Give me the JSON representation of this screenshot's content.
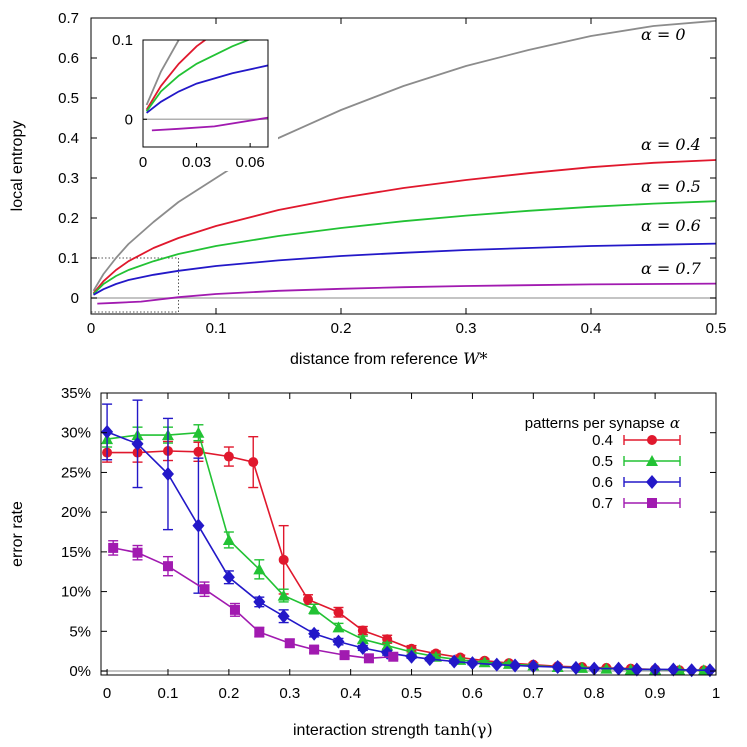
{
  "chart_data": [
    {
      "type": "line",
      "id": "top",
      "title": "",
      "xlabel": "distance from reference",
      "xlabel_math": "W*",
      "ylabel": "local entropy",
      "xlim": [
        0,
        0.5
      ],
      "ylim": [
        -0.04,
        0.7
      ],
      "xticks": [
        {
          "v": 0,
          "label": "0"
        },
        {
          "v": 0.1,
          "label": "0.1"
        },
        {
          "v": 0.2,
          "label": "0.2"
        },
        {
          "v": 0.3,
          "label": "0.3"
        },
        {
          "v": 0.4,
          "label": "0.4"
        },
        {
          "v": 0.5,
          "label": "0.5"
        }
      ],
      "yticks": [
        {
          "v": 0,
          "label": "0"
        },
        {
          "v": 0.1,
          "label": "0.1"
        },
        {
          "v": 0.2,
          "label": "0.2"
        },
        {
          "v": 0.3,
          "label": "0.3"
        },
        {
          "v": 0.4,
          "label": "0.4"
        },
        {
          "v": 0.5,
          "label": "0.5"
        },
        {
          "v": 0.6,
          "label": "0.6"
        },
        {
          "v": 0.7,
          "label": "0.7"
        }
      ],
      "series": [
        {
          "name": "α = 0",
          "label": "α = 0",
          "label_at": [
            0.44,
            0.645
          ],
          "color": "#8c8c8c",
          "x": [
            0.002,
            0.01,
            0.02,
            0.03,
            0.05,
            0.07,
            0.1,
            0.13,
            0.15,
            0.2,
            0.25,
            0.3,
            0.35,
            0.4,
            0.45,
            0.5
          ],
          "y": [
            0.018,
            0.06,
            0.1,
            0.135,
            0.19,
            0.24,
            0.3,
            0.36,
            0.4,
            0.47,
            0.53,
            0.58,
            0.62,
            0.655,
            0.68,
            0.693
          ]
        },
        {
          "name": "α = 0.4",
          "label": "α = 0.4",
          "label_at": [
            0.44,
            0.37
          ],
          "color": "#e0182d",
          "x": [
            0.002,
            0.01,
            0.02,
            0.03,
            0.05,
            0.07,
            0.1,
            0.15,
            0.2,
            0.25,
            0.3,
            0.35,
            0.4,
            0.45,
            0.5
          ],
          "y": [
            0.012,
            0.042,
            0.07,
            0.092,
            0.125,
            0.15,
            0.18,
            0.22,
            0.25,
            0.275,
            0.295,
            0.312,
            0.327,
            0.338,
            0.345
          ]
        },
        {
          "name": "α = 0.5",
          "label": "α = 0.5",
          "label_at": [
            0.44,
            0.265
          ],
          "color": "#22c234",
          "x": [
            0.002,
            0.01,
            0.02,
            0.03,
            0.05,
            0.07,
            0.1,
            0.15,
            0.2,
            0.25,
            0.3,
            0.35,
            0.4,
            0.45,
            0.5
          ],
          "y": [
            0.01,
            0.035,
            0.055,
            0.07,
            0.092,
            0.11,
            0.13,
            0.155,
            0.175,
            0.192,
            0.206,
            0.218,
            0.228,
            0.236,
            0.242
          ]
        },
        {
          "name": "α = 0.6",
          "label": "α = 0.6",
          "label_at": [
            0.44,
            0.168
          ],
          "color": "#2318c8",
          "x": [
            0.002,
            0.01,
            0.02,
            0.03,
            0.05,
            0.07,
            0.1,
            0.15,
            0.2,
            0.25,
            0.3,
            0.35,
            0.4,
            0.45,
            0.5
          ],
          "y": [
            0.008,
            0.022,
            0.035,
            0.045,
            0.058,
            0.068,
            0.08,
            0.094,
            0.105,
            0.113,
            0.12,
            0.125,
            0.13,
            0.133,
            0.136
          ]
        },
        {
          "name": "α = 0.7",
          "label": "α = 0.7",
          "label_at": [
            0.44,
            0.06
          ],
          "color": "#a11ab0",
          "x": [
            0.005,
            0.02,
            0.04,
            0.07,
            0.1,
            0.15,
            0.2,
            0.25,
            0.3,
            0.35,
            0.4,
            0.45,
            0.5
          ],
          "y": [
            -0.014,
            -0.012,
            -0.009,
            0.002,
            0.01,
            0.018,
            0.023,
            0.027,
            0.03,
            0.032,
            0.034,
            0.035,
            0.036
          ]
        }
      ],
      "inset": {
        "xlim": [
          0,
          0.07
        ],
        "ylim": [
          -0.035,
          0.1
        ],
        "xticks": [
          {
            "v": 0,
            "label": "0"
          },
          {
            "v": 0.03,
            "label": "0.03"
          },
          {
            "v": 0.06,
            "label": "0.06"
          }
        ],
        "yticks": [
          {
            "v": 0,
            "label": "0"
          },
          {
            "v": 0.1,
            "label": "0.1"
          }
        ],
        "zoom_box": {
          "x": [
            0,
            0.07
          ],
          "y": [
            -0.035,
            0.1
          ]
        }
      }
    },
    {
      "type": "line",
      "id": "bottom",
      "title": "",
      "xlabel": "interaction strength",
      "xlabel_math": "tanh(γ)",
      "ylabel": "error rate",
      "xlim": [
        -0.01,
        1
      ],
      "ylim": [
        -0.005,
        0.35
      ],
      "xticks": [
        {
          "v": 0,
          "label": "0"
        },
        {
          "v": 0.1,
          "label": "0.1"
        },
        {
          "v": 0.2,
          "label": "0.2"
        },
        {
          "v": 0.3,
          "label": "0.3"
        },
        {
          "v": 0.4,
          "label": "0.4"
        },
        {
          "v": 0.5,
          "label": "0.5"
        },
        {
          "v": 0.6,
          "label": "0.6"
        },
        {
          "v": 0.7,
          "label": "0.7"
        },
        {
          "v": 0.8,
          "label": "0.8"
        },
        {
          "v": 0.9,
          "label": "0.9"
        },
        {
          "v": 1,
          "label": "1"
        }
      ],
      "yticks": [
        {
          "v": 0,
          "label": "0%"
        },
        {
          "v": 0.05,
          "label": "5%"
        },
        {
          "v": 0.1,
          "label": "10%"
        },
        {
          "v": 0.15,
          "label": "15%"
        },
        {
          "v": 0.2,
          "label": "20%"
        },
        {
          "v": 0.25,
          "label": "25%"
        },
        {
          "v": 0.3,
          "label": "30%"
        },
        {
          "v": 0.35,
          "label": "35%"
        }
      ],
      "legend_title": "patterns per synapse",
      "legend_title_math": "α",
      "legend_position": "top-right",
      "series": [
        {
          "name": "0.4",
          "color": "#e0182d",
          "marker": "circle",
          "x": [
            0.0,
            0.05,
            0.1,
            0.15,
            0.2,
            0.24,
            0.29,
            0.33,
            0.38,
            0.42,
            0.46,
            0.5,
            0.54,
            0.58,
            0.62,
            0.66,
            0.7,
            0.74,
            0.78,
            0.82,
            0.86,
            0.9,
            0.94,
            0.98
          ],
          "y": [
            0.275,
            0.275,
            0.277,
            0.276,
            0.27,
            0.263,
            0.14,
            0.09,
            0.074,
            0.051,
            0.04,
            0.028,
            0.022,
            0.017,
            0.013,
            0.01,
            0.008,
            0.006,
            0.005,
            0.004,
            0.003,
            0.002,
            0.001,
            0.001
          ],
          "err": [
            0.012,
            0.012,
            0.012,
            0.012,
            0.012,
            0.032,
            0.043,
            0.006,
            0.006,
            0.005,
            0.005,
            0.004,
            0.003,
            0.003,
            0.002,
            0.002,
            0.002,
            0.002,
            0.001,
            0.001,
            0.001,
            0.001,
            0.001,
            0.001
          ]
        },
        {
          "name": "0.5",
          "color": "#22c234",
          "marker": "triangle",
          "x": [
            0.0,
            0.05,
            0.1,
            0.15,
            0.2,
            0.25,
            0.29,
            0.34,
            0.38,
            0.42,
            0.46,
            0.5,
            0.54,
            0.58,
            0.62,
            0.66,
            0.7,
            0.74,
            0.78,
            0.82,
            0.86,
            0.9,
            0.94,
            0.98
          ],
          "y": [
            0.292,
            0.297,
            0.297,
            0.3,
            0.165,
            0.128,
            0.095,
            0.078,
            0.055,
            0.04,
            0.032,
            0.024,
            0.018,
            0.014,
            0.011,
            0.009,
            0.007,
            0.005,
            0.004,
            0.003,
            0.002,
            0.002,
            0.001,
            0.001
          ],
          "err": [
            0.01,
            0.01,
            0.01,
            0.01,
            0.01,
            0.012,
            0.008,
            0.006,
            0.005,
            0.004,
            0.004,
            0.003,
            0.003,
            0.002,
            0.002,
            0.002,
            0.002,
            0.001,
            0.001,
            0.001,
            0.001,
            0.001,
            0.001,
            0.001
          ]
        },
        {
          "name": "0.6",
          "color": "#2318c8",
          "marker": "diamond",
          "x": [
            0.0,
            0.05,
            0.1,
            0.15,
            0.2,
            0.25,
            0.29,
            0.34,
            0.38,
            0.42,
            0.46,
            0.5,
            0.53,
            0.57,
            0.6,
            0.64,
            0.67,
            0.7,
            0.74,
            0.77,
            0.8,
            0.84,
            0.87,
            0.9,
            0.93,
            0.96,
            0.99
          ],
          "y": [
            0.301,
            0.286,
            0.248,
            0.183,
            0.118,
            0.087,
            0.069,
            0.047,
            0.037,
            0.029,
            0.023,
            0.018,
            0.015,
            0.012,
            0.01,
            0.008,
            0.007,
            0.006,
            0.005,
            0.004,
            0.003,
            0.003,
            0.002,
            0.002,
            0.002,
            0.001,
            0.001
          ],
          "err": [
            0.035,
            0.055,
            0.07,
            0.085,
            0.008,
            0.006,
            0.008,
            0.004,
            0.004,
            0.003,
            0.003,
            0.002,
            0.002,
            0.002,
            0.002,
            0.001,
            0.001,
            0.001,
            0.001,
            0.001,
            0.001,
            0.001,
            0.001,
            0.001,
            0.001,
            0.001,
            0.001
          ]
        },
        {
          "name": "0.7",
          "color": "#a11ab0",
          "marker": "square",
          "x": [
            0.01,
            0.05,
            0.1,
            0.16,
            0.21,
            0.25,
            0.3,
            0.34,
            0.39,
            0.43,
            0.47
          ],
          "y": [
            0.155,
            0.149,
            0.132,
            0.103,
            0.077,
            0.049,
            0.035,
            0.027,
            0.02,
            0.016,
            0.018
          ],
          "err": [
            0.009,
            0.009,
            0.012,
            0.009,
            0.008,
            0.006,
            0.005,
            0.004,
            0.004,
            0.003,
            0.003
          ]
        }
      ]
    }
  ]
}
